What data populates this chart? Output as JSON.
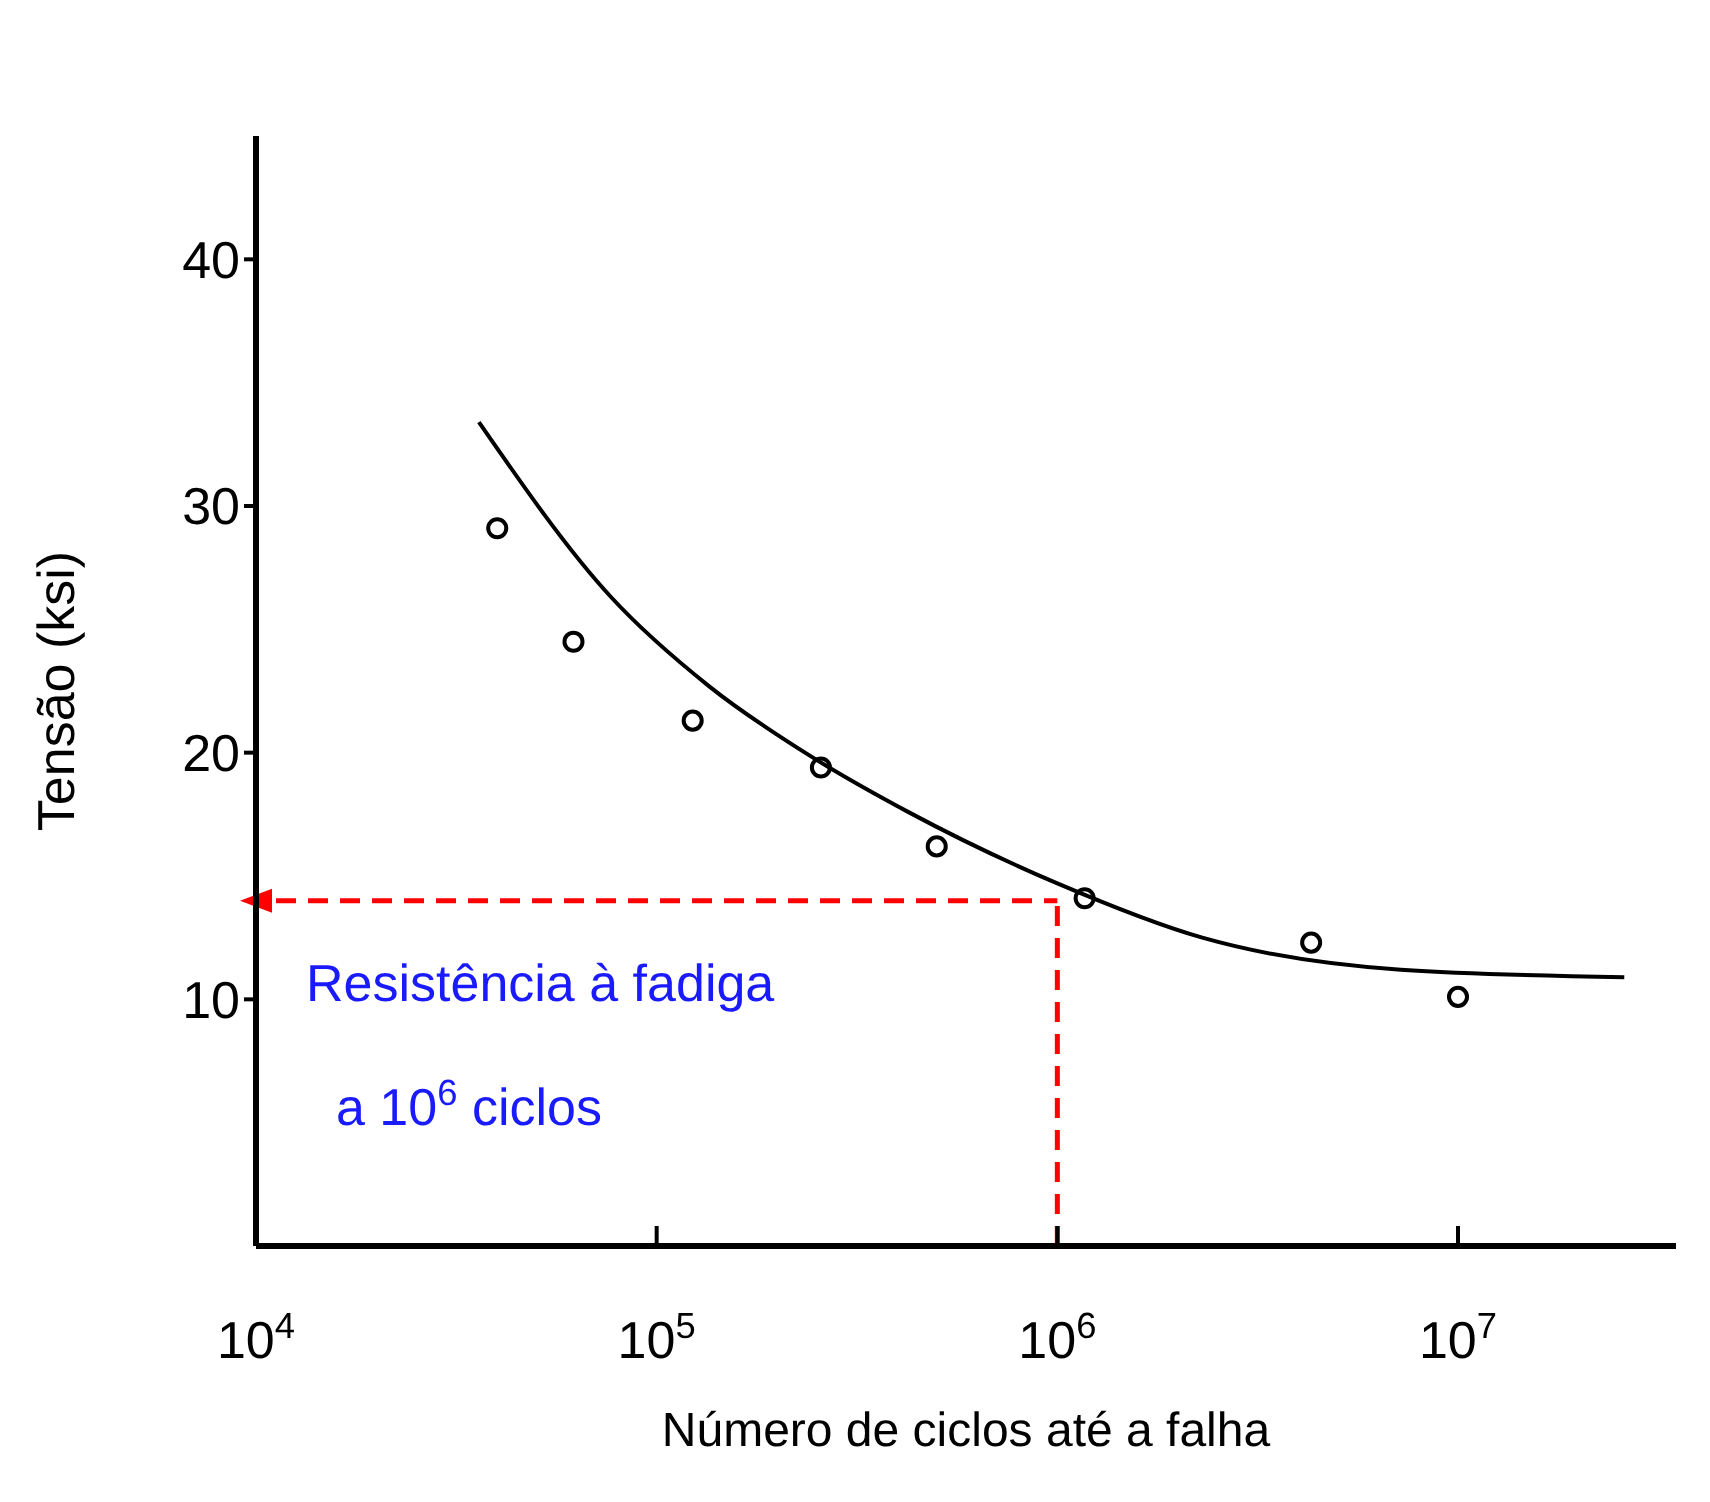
{
  "chart_data": {
    "type": "scatter",
    "xlabel": "Número de ciclos até a falha",
    "ylabel": "Tensão (ksi)",
    "log": "x",
    "marker": "circle",
    "xlim": [
      10000,
      35000000
    ],
    "ylim": [
      0,
      45
    ],
    "xticks": [
      {
        "value": 10000,
        "label": "10$^{4}$"
      },
      {
        "value": 100000,
        "label": "10$^{5}$"
      },
      {
        "value": 1000000,
        "label": "10$^{6}$"
      },
      {
        "value": 10000000,
        "label": "10$^{7}$"
      }
    ],
    "yticks": [
      10,
      20,
      30,
      40
    ],
    "series": [
      {
        "color": "#000000",
        "x": [
          40000,
          62000,
          123000,
          257000,
          500000,
          1170000,
          4300000,
          10000000
        ],
        "values": [
          29.1,
          24.5,
          21.3,
          19.4,
          16.2,
          14.1,
          12.3,
          10.1
        ]
      },
      {
        "type": "line",
        "color": "#000000",
        "marker": "none",
        "x": [
          36000,
          77000,
          135000,
          240000,
          424000,
          1000000,
          2300000,
          7200000,
          26000000
        ],
        "values": [
          33.4,
          26.3,
          22.7,
          19.9,
          17.6,
          14.7,
          12.5,
          11.2,
          10.9
        ]
      }
    ],
    "ref_lines": [
      {
        "axis": "y",
        "value": 14,
        "color": "#ff0000",
        "line_style": "dashed"
      },
      {
        "axis": "x",
        "value": 1000000,
        "color": "#ff0000",
        "line_style": "dashed"
      }
    ],
    "annotations": [
      "Resistência à fadiga",
      "a 10$^{6}$ ciclos"
    ]
  }
}
